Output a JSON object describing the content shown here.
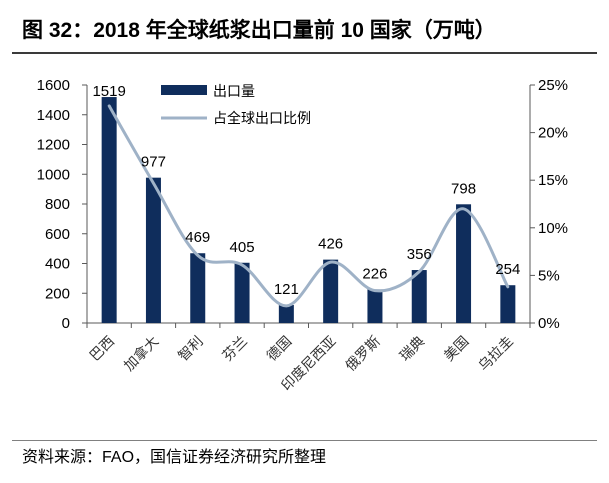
{
  "title": "图 32：2018 年全球纸浆出口量前 10 国家（万吨）",
  "source": "资料来源：FAO，国信证券经济研究所整理",
  "colors": {
    "bar": "#0f2d5c",
    "line": "#9fb2c7",
    "axis": "#595959",
    "text": "#000000",
    "category_text": "#333333"
  },
  "chart_data": {
    "type": "bar",
    "categories": [
      "巴西",
      "加拿大",
      "智利",
      "芬兰",
      "德国",
      "印度尼西亚",
      "俄罗斯",
      "瑞典",
      "美国",
      "乌拉圭"
    ],
    "series": [
      {
        "name": "出口量",
        "type": "bar",
        "axis": "left",
        "data_labels": true,
        "values": [
          1519,
          977,
          469,
          405,
          121,
          426,
          226,
          356,
          798,
          254
        ]
      },
      {
        "name": "占全球出口比例",
        "type": "line",
        "axis": "right",
        "smooth": true,
        "values": [
          22.8,
          14.7,
          7.1,
          6.1,
          1.8,
          6.4,
          3.4,
          5.4,
          12.0,
          3.8
        ]
      }
    ],
    "y_left": {
      "ylim": [
        0,
        1600
      ],
      "ticks": [
        "0",
        "200",
        "400",
        "600",
        "800",
        "1000",
        "1200",
        "1400",
        "1600"
      ]
    },
    "y_right": {
      "ylim": [
        0,
        25
      ],
      "ticks": [
        "0%",
        "5%",
        "10%",
        "15%",
        "20%",
        "25%"
      ]
    },
    "legend_position": "top-left",
    "grid": false
  }
}
